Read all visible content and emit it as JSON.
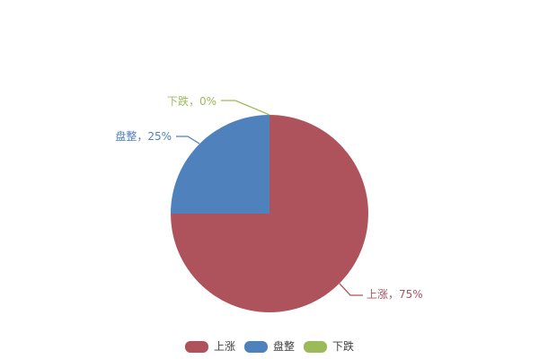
{
  "canvas": {
    "background": "#ffffff"
  },
  "chart_data": {
    "type": "pie",
    "title": "",
    "categories": [
      "上涨",
      "盘整",
      "下跌"
    ],
    "values": [
      75,
      25,
      0
    ],
    "unit": "%",
    "slice_labels": [
      "上涨，75%",
      "盘整，25%",
      "下跌，0%"
    ],
    "colors": [
      "#AE535B",
      "#4F81BD",
      "#9BBB59"
    ],
    "start_angle": "top",
    "direction": "clockwise",
    "legend_position": "bottom",
    "legend_entries": [
      "上涨",
      "盘整",
      "下跌"
    ]
  },
  "legend_text_color": "#404040"
}
